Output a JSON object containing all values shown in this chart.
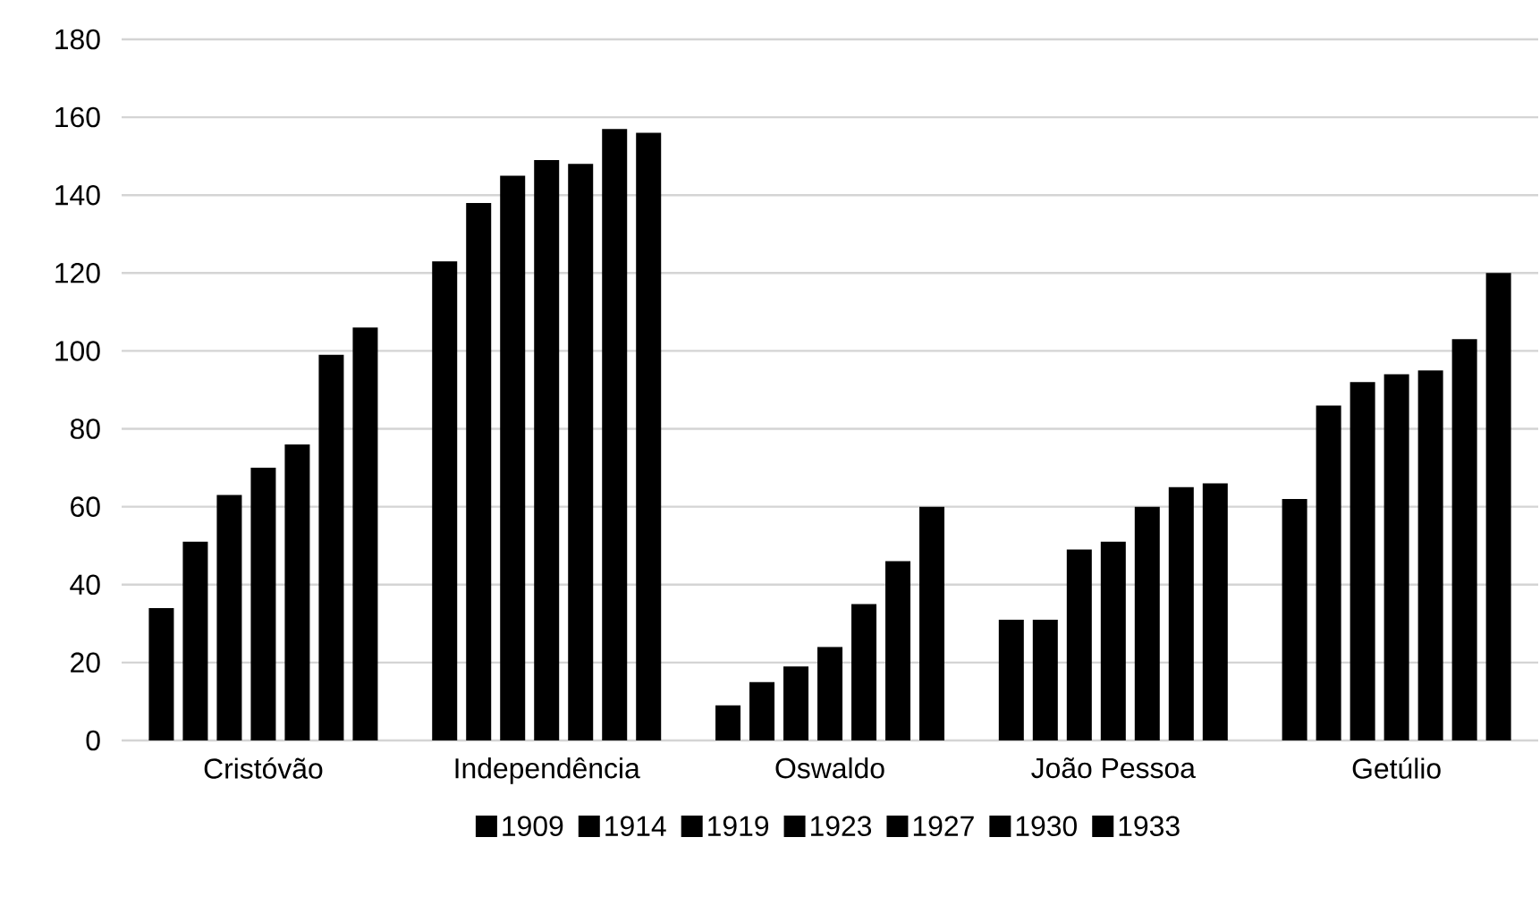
{
  "chart_data": {
    "type": "bar",
    "categories": [
      "Cristóvão",
      "Independência",
      "Oswaldo",
      "João Pessoa",
      "Getúlio"
    ],
    "series": [
      {
        "name": "1909",
        "color": "#000000",
        "values": [
          34,
          123,
          9,
          31,
          62
        ]
      },
      {
        "name": "1914",
        "color": "#000000",
        "values": [
          51,
          138,
          15,
          31,
          86
        ]
      },
      {
        "name": "1919",
        "color": "#000000",
        "values": [
          63,
          145,
          19,
          49,
          92
        ]
      },
      {
        "name": "1923",
        "color": "#000000",
        "values": [
          70,
          149,
          24,
          51,
          94
        ]
      },
      {
        "name": "1927",
        "color": "#000000",
        "values": [
          76,
          148,
          35,
          60,
          95
        ]
      },
      {
        "name": "1930",
        "color": "#000000",
        "values": [
          99,
          157,
          46,
          65,
          103
        ]
      },
      {
        "name": "1933",
        "color": "#000000",
        "values": [
          106,
          156,
          60,
          66,
          120
        ]
      }
    ],
    "ylim": [
      0,
      180
    ],
    "yticks": [
      0,
      20,
      40,
      60,
      80,
      100,
      120,
      140,
      160,
      180
    ],
    "grid": "y",
    "legend": "bottom"
  }
}
